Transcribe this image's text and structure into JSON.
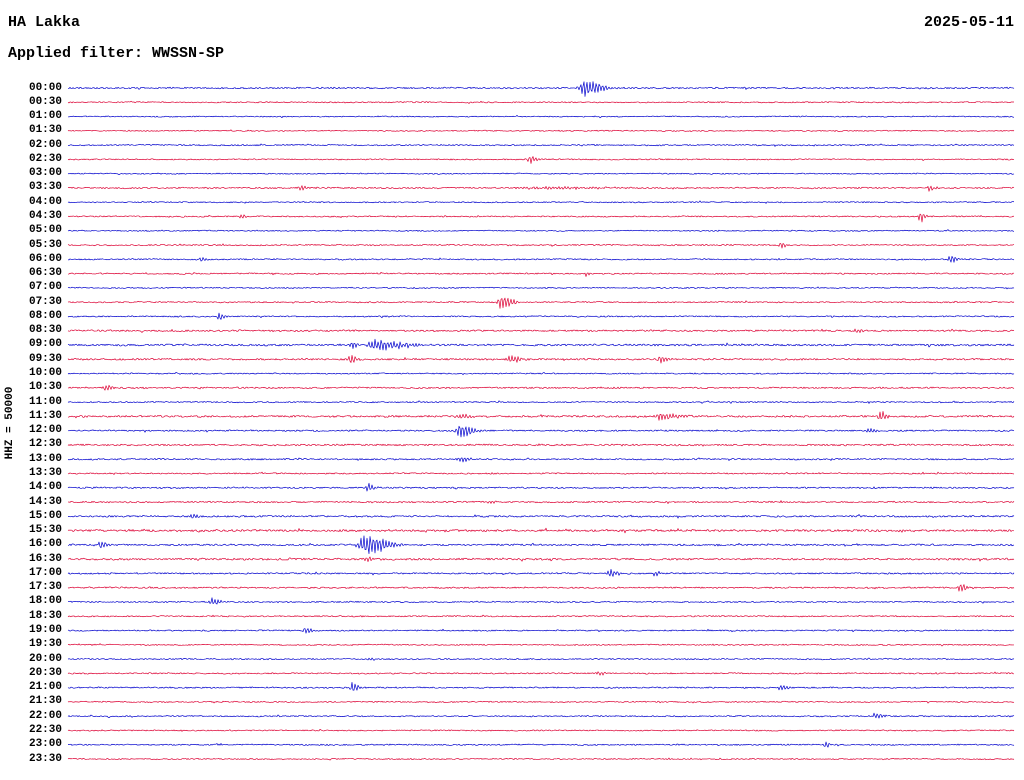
{
  "header": {
    "station": "HA Lakka",
    "date": "2025-05-11",
    "filter_label": "Applied filter: WWSSN-SP"
  },
  "axis": {
    "left_label": "HHZ = 50000"
  },
  "chart_data": {
    "type": "line",
    "subtype": "helicorder-seismogram",
    "title": "HA Lakka",
    "date": "2025-05-11",
    "filter": "WWSSN-SP",
    "ylabel": "HHZ = 50000",
    "minutes_per_row": 30,
    "time_range": [
      "00:00",
      "24:00"
    ],
    "grid": false,
    "legend": "none",
    "events_format": "p = position as fraction of 30-min row, a = peak amplitude in px, w = envelope width in px",
    "palette": {
      "blue": "#0000cc",
      "red": "#dc0033"
    },
    "rows": [
      {
        "label": "00:00",
        "color": "blue",
        "noise": 0.7,
        "events": [
          {
            "p": 0.546,
            "a": 10,
            "w": 8
          }
        ]
      },
      {
        "label": "00:30",
        "color": "red",
        "noise": 0.55,
        "events": []
      },
      {
        "label": "01:00",
        "color": "blue",
        "noise": 0.5,
        "events": []
      },
      {
        "label": "01:30",
        "color": "red",
        "noise": 0.5,
        "events": []
      },
      {
        "label": "02:00",
        "color": "blue",
        "noise": 0.6,
        "events": []
      },
      {
        "label": "02:30",
        "color": "red",
        "noise": 0.55,
        "events": [
          {
            "p": 0.488,
            "a": 6,
            "w": 2.5
          }
        ]
      },
      {
        "label": "03:00",
        "color": "blue",
        "noise": 0.5,
        "events": []
      },
      {
        "label": "03:30",
        "color": "red",
        "noise": 0.65,
        "events": [
          {
            "p": 0.245,
            "a": 3,
            "w": 4
          },
          {
            "p": 0.5,
            "a": 1.5,
            "w": 30
          },
          {
            "p": 0.91,
            "a": 3.5,
            "w": 2.5
          }
        ]
      },
      {
        "label": "04:00",
        "color": "blue",
        "noise": 0.55,
        "events": []
      },
      {
        "label": "04:30",
        "color": "red",
        "noise": 0.6,
        "events": [
          {
            "p": 0.182,
            "a": 3,
            "w": 2.5
          },
          {
            "p": 0.9,
            "a": 6.5,
            "w": 2.5
          }
        ]
      },
      {
        "label": "05:00",
        "color": "blue",
        "noise": 0.5,
        "events": []
      },
      {
        "label": "05:30",
        "color": "red",
        "noise": 0.6,
        "events": [
          {
            "p": 0.753,
            "a": 4,
            "w": 2.5
          }
        ]
      },
      {
        "label": "06:00",
        "color": "blue",
        "noise": 0.6,
        "events": [
          {
            "p": 0.14,
            "a": 2.5,
            "w": 2
          },
          {
            "p": 0.932,
            "a": 7,
            "w": 2.5
          }
        ]
      },
      {
        "label": "06:30",
        "color": "red",
        "noise": 0.6,
        "events": [
          {
            "p": 0.547,
            "a": 2.5,
            "w": 2
          }
        ]
      },
      {
        "label": "07:00",
        "color": "blue",
        "noise": 0.55,
        "events": []
      },
      {
        "label": "07:30",
        "color": "red",
        "noise": 0.6,
        "events": [
          {
            "p": 0.457,
            "a": 9,
            "w": 5
          }
        ]
      },
      {
        "label": "08:00",
        "color": "blue",
        "noise": 0.6,
        "events": [
          {
            "p": 0.159,
            "a": 6,
            "w": 2.5
          }
        ]
      },
      {
        "label": "08:30",
        "color": "red",
        "noise": 0.8,
        "events": [
          {
            "p": 0.832,
            "a": 3,
            "w": 2.5
          }
        ]
      },
      {
        "label": "09:00",
        "color": "blue",
        "noise": 0.9,
        "events": [
          {
            "p": 0.3,
            "a": 4,
            "w": 4
          },
          {
            "p": 0.325,
            "a": 6,
            "w": 14
          }
        ]
      },
      {
        "label": "09:30",
        "color": "red",
        "noise": 0.8,
        "events": [
          {
            "p": 0.298,
            "a": 5,
            "w": 3
          },
          {
            "p": 0.467,
            "a": 4,
            "w": 5
          },
          {
            "p": 0.626,
            "a": 3.5,
            "w": 3
          }
        ]
      },
      {
        "label": "10:00",
        "color": "blue",
        "noise": 0.6,
        "events": []
      },
      {
        "label": "10:30",
        "color": "red",
        "noise": 0.7,
        "events": [
          {
            "p": 0.039,
            "a": 4,
            "w": 3
          }
        ]
      },
      {
        "label": "11:00",
        "color": "blue",
        "noise": 0.6,
        "events": []
      },
      {
        "label": "11:30",
        "color": "red",
        "noise": 0.9,
        "events": [
          {
            "p": 0.414,
            "a": 3,
            "w": 4
          },
          {
            "p": 0.626,
            "a": 4,
            "w": 8
          },
          {
            "p": 0.858,
            "a": 6,
            "w": 3
          }
        ]
      },
      {
        "label": "12:00",
        "color": "blue",
        "noise": 0.7,
        "events": [
          {
            "p": 0.414,
            "a": 8,
            "w": 6
          },
          {
            "p": 0.846,
            "a": 3,
            "w": 3
          }
        ]
      },
      {
        "label": "12:30",
        "color": "red",
        "noise": 0.8,
        "events": []
      },
      {
        "label": "13:00",
        "color": "blue",
        "noise": 0.7,
        "events": [
          {
            "p": 0.414,
            "a": 3,
            "w": 5
          }
        ]
      },
      {
        "label": "13:30",
        "color": "red",
        "noise": 0.6,
        "events": []
      },
      {
        "label": "14:00",
        "color": "blue",
        "noise": 0.7,
        "events": [
          {
            "p": 0.317,
            "a": 5,
            "w": 3
          }
        ]
      },
      {
        "label": "14:30",
        "color": "red",
        "noise": 0.7,
        "events": [
          {
            "p": 0.445,
            "a": 2,
            "w": 3
          }
        ]
      },
      {
        "label": "15:00",
        "color": "blue",
        "noise": 0.8,
        "events": [
          {
            "p": 0.13,
            "a": 2,
            "w": 3
          }
        ]
      },
      {
        "label": "15:30",
        "color": "red",
        "noise": 1.0,
        "events": [
          {
            "p": 0.88,
            "a": 2,
            "w": 4
          }
        ]
      },
      {
        "label": "16:00",
        "color": "blue",
        "noise": 0.8,
        "events": [
          {
            "p": 0.034,
            "a": 5,
            "w": 2.5
          },
          {
            "p": 0.314,
            "a": 11,
            "w": 10
          }
        ]
      },
      {
        "label": "16:30",
        "color": "red",
        "noise": 0.9,
        "events": [
          {
            "p": 0.314,
            "a": 2.5,
            "w": 4
          }
        ]
      },
      {
        "label": "17:00",
        "color": "blue",
        "noise": 0.7,
        "events": [
          {
            "p": 0.573,
            "a": 4,
            "w": 4
          },
          {
            "p": 0.62,
            "a": 3,
            "w": 3
          }
        ]
      },
      {
        "label": "17:30",
        "color": "red",
        "noise": 0.7,
        "events": [
          {
            "p": 0.943,
            "a": 6,
            "w": 2.5
          }
        ]
      },
      {
        "label": "18:00",
        "color": "blue",
        "noise": 0.6,
        "events": [
          {
            "p": 0.152,
            "a": 4,
            "w": 4
          }
        ]
      },
      {
        "label": "18:30",
        "color": "red",
        "noise": 0.6,
        "events": []
      },
      {
        "label": "19:00",
        "color": "blue",
        "noise": 0.6,
        "events": [
          {
            "p": 0.251,
            "a": 4,
            "w": 3
          }
        ]
      },
      {
        "label": "19:30",
        "color": "red",
        "noise": 0.55,
        "events": []
      },
      {
        "label": "20:00",
        "color": "blue",
        "noise": 0.6,
        "events": [
          {
            "p": 0.317,
            "a": 2,
            "w": 3
          }
        ]
      },
      {
        "label": "20:30",
        "color": "red",
        "noise": 0.6,
        "events": [
          {
            "p": 0.56,
            "a": 2.5,
            "w": 3
          }
        ]
      },
      {
        "label": "21:00",
        "color": "blue",
        "noise": 0.65,
        "events": [
          {
            "p": 0.3,
            "a": 6,
            "w": 3
          },
          {
            "p": 0.753,
            "a": 3,
            "w": 4
          }
        ]
      },
      {
        "label": "21:30",
        "color": "red",
        "noise": 0.55,
        "events": []
      },
      {
        "label": "22:00",
        "color": "blue",
        "noise": 0.6,
        "events": [
          {
            "p": 0.853,
            "a": 4,
            "w": 3
          }
        ]
      },
      {
        "label": "22:30",
        "color": "red",
        "noise": 0.55,
        "events": []
      },
      {
        "label": "23:00",
        "color": "blue",
        "noise": 0.6,
        "events": [
          {
            "p": 0.8,
            "a": 3,
            "w": 3
          }
        ]
      },
      {
        "label": "23:30",
        "color": "red",
        "noise": 0.55,
        "events": []
      }
    ]
  }
}
